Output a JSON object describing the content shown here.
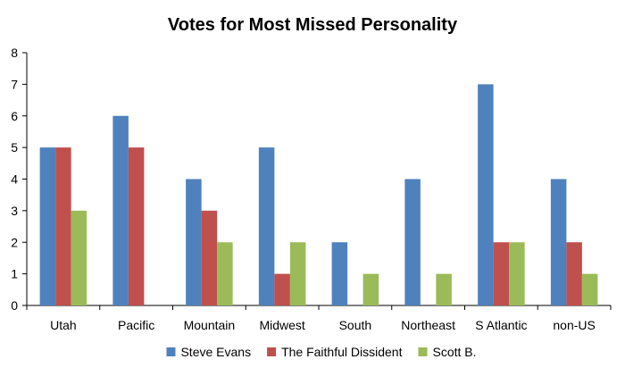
{
  "chart_data": {
    "type": "bar",
    "title": "Votes for Most Missed Personality",
    "xlabel": "",
    "ylabel": "",
    "categories": [
      "Utah",
      "Pacific",
      "Mountain",
      "Midwest",
      "South",
      "Northeast",
      "S Atlantic",
      "non-US"
    ],
    "series": [
      {
        "name": "Steve Evans",
        "color": "#4F81BD",
        "values": [
          5,
          6,
          4,
          5,
          2,
          4,
          7,
          4
        ]
      },
      {
        "name": "The Faithful Dissident",
        "color": "#C0504D",
        "values": [
          5,
          5,
          3,
          1,
          0,
          0,
          2,
          2
        ]
      },
      {
        "name": "Scott B.",
        "color": "#9BBB59",
        "values": [
          3,
          0,
          2,
          2,
          1,
          1,
          2,
          1
        ]
      }
    ],
    "ylim": [
      0,
      8
    ],
    "yticks": [
      0,
      1,
      2,
      3,
      4,
      5,
      6,
      7,
      8
    ],
    "grid": false,
    "legend": "bottom"
  }
}
